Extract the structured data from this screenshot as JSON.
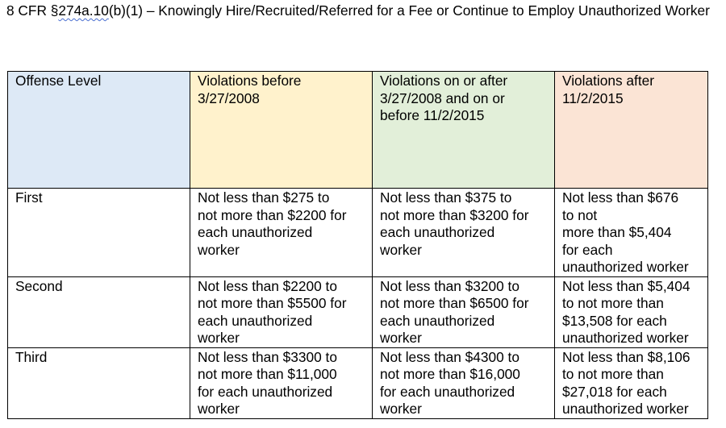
{
  "title": {
    "prefix": "8 CFR §",
    "flagged": "274a.10",
    "suffix": "(b)(1) – Knowingly Hire/Recruited/Referred for a Fee or Continue to Employ Unauthorized Worker"
  },
  "colors": {
    "offense_header": "#dde9f6",
    "before_2008": "#fff2cc",
    "2008_2015": "#e2efd9",
    "after_2015": "#fbe4d5"
  },
  "table": {
    "headers": [
      "Offense Level",
      "Violations before\n3/27/2008",
      "Violations on or after\n3/27/2008 and on or\nbefore 11/2/2015",
      "Violations after\n11/2/2015"
    ],
    "rows": [
      [
        "First",
        "Not less than $275 to\nnot more than $2200 for\neach unauthorized\nworker",
        "Not less than $375 to\nnot more than $3200 for\neach unauthorized\nworker",
        "Not less than $676\nto not\nmore than $5,404\nfor each\nunauthorized worker"
      ],
      [
        "Second",
        "Not less than $2200 to\nnot more than $5500 for\neach unauthorized\nworker",
        "Not less than $3200 to\nnot more than $6500 for\neach unauthorized\nworker",
        "Not less than $5,404\nto not more than\n$13,508 for each\nunauthorized worker"
      ],
      [
        "Third",
        "Not less than $3300 to\nnot more than $11,000\nfor each unauthorized\nworker",
        "Not less than $4300 to\nnot more than $16,000\nfor each unauthorized\nworker",
        "Not less than $8,106\nto not more than\n$27,018 for each\nunauthorized worker"
      ]
    ]
  }
}
